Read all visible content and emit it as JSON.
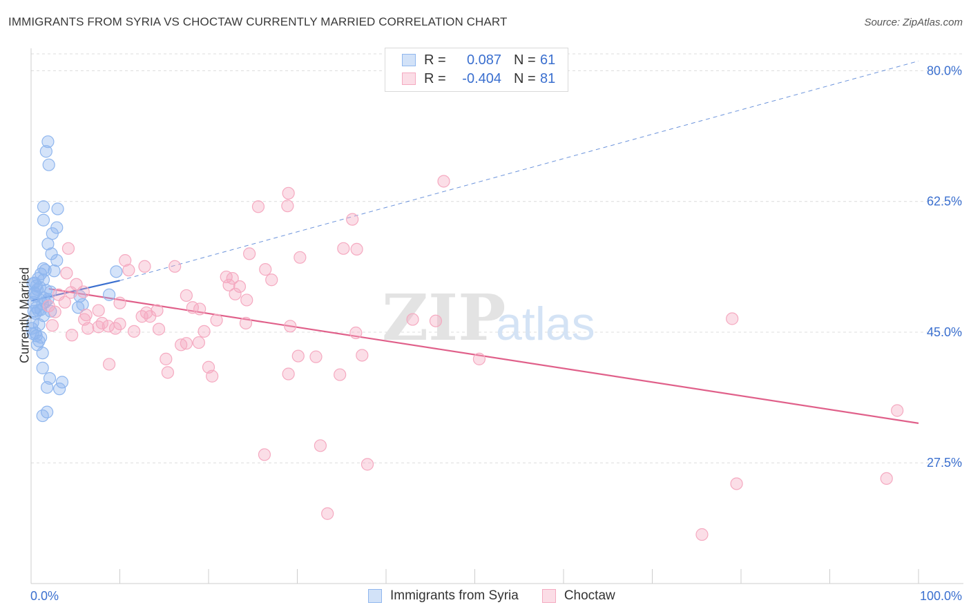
{
  "title": "IMMIGRANTS FROM SYRIA VS CHOCTAW CURRENTLY MARRIED CORRELATION CHART",
  "source": "Source: ZipAtlas.com",
  "watermark": {
    "zip": "ZIP",
    "atlas": "atlas"
  },
  "legend": {
    "rows": [
      {
        "r_label": "R =",
        "r_value": "0.087",
        "n_label": "N =",
        "n_value": "61",
        "color": "#8fb6ee"
      },
      {
        "r_label": "R =",
        "r_value": "-0.404",
        "n_label": "N =",
        "n_value": "81",
        "color": "#f5a9c0"
      }
    ]
  },
  "chart_data": {
    "type": "scatter",
    "title": "IMMIGRANTS FROM SYRIA VS CHOCTAW CURRENTLY MARRIED CORRELATION CHART",
    "xlabel": "",
    "ylabel": "Currently Married",
    "xlim": [
      0,
      100
    ],
    "ylim": [
      13,
      83
    ],
    "x_tick_labels": [
      "0.0%",
      "100.0%"
    ],
    "y_ticks": [
      27.5,
      45.0,
      62.5,
      80.0
    ],
    "y_tick_labels": [
      "27.5%",
      "45.0%",
      "62.5%",
      "80.0%"
    ],
    "grid": true,
    "series": [
      {
        "name": "Immigrants from Syria",
        "color": "#8fb6ee",
        "line_color": "#3a6fcf",
        "trend_solid": [
          [
            0,
            49.2
          ],
          [
            10,
            51.9
          ]
        ],
        "trend_dashed": [
          [
            10,
            51.9
          ],
          [
            100,
            81.3
          ]
        ],
        "points": [
          [
            1.9,
            70.5
          ],
          [
            1.7,
            69.2
          ],
          [
            2.0,
            67.4
          ],
          [
            1.4,
            61.8
          ],
          [
            3.0,
            61.5
          ],
          [
            1.4,
            60.0
          ],
          [
            2.9,
            59.0
          ],
          [
            2.4,
            58.2
          ],
          [
            1.9,
            56.8
          ],
          [
            2.3,
            55.5
          ],
          [
            2.9,
            54.6
          ],
          [
            1.4,
            53.5
          ],
          [
            1.6,
            53.3
          ],
          [
            2.6,
            53.2
          ],
          [
            1.1,
            52.8
          ],
          [
            1.4,
            52.0
          ],
          [
            0.8,
            52.2
          ],
          [
            0.4,
            51.6
          ],
          [
            0.6,
            51.2
          ],
          [
            1.0,
            51.0
          ],
          [
            0.7,
            50.7
          ],
          [
            1.7,
            50.6
          ],
          [
            2.2,
            50.4
          ],
          [
            0.4,
            50.3
          ],
          [
            0.5,
            49.8
          ],
          [
            1.4,
            49.6
          ],
          [
            1.9,
            49.4
          ],
          [
            1.3,
            48.8
          ],
          [
            0.3,
            49.0
          ],
          [
            0.6,
            48.3
          ],
          [
            1.1,
            48.0
          ],
          [
            5.5,
            49.8
          ],
          [
            8.8,
            50.0
          ],
          [
            5.8,
            48.7
          ],
          [
            5.3,
            48.3
          ],
          [
            1.4,
            47.2
          ],
          [
            2.2,
            47.8
          ],
          [
            0.5,
            47.5
          ],
          [
            0.8,
            47.9
          ],
          [
            0.2,
            46.3
          ],
          [
            0.1,
            45.5
          ],
          [
            0.2,
            44.8
          ],
          [
            0.6,
            44.5
          ],
          [
            1.1,
            44.3
          ],
          [
            0.9,
            43.8
          ],
          [
            0.7,
            43.3
          ],
          [
            1.3,
            42.2
          ],
          [
            1.3,
            40.2
          ],
          [
            2.1,
            38.8
          ],
          [
            3.5,
            38.3
          ],
          [
            1.8,
            37.6
          ],
          [
            3.2,
            37.4
          ],
          [
            1.8,
            34.3
          ],
          [
            1.3,
            33.8
          ],
          [
            0.4,
            50.2
          ],
          [
            0.9,
            46.0
          ],
          [
            9.6,
            53.1
          ],
          [
            0.2,
            51.5
          ],
          [
            0.3,
            47.8
          ],
          [
            0.5,
            44.9
          ],
          [
            1.6,
            49.0
          ]
        ]
      },
      {
        "name": "Choctaw",
        "color": "#f5a9c0",
        "line_color": "#e0608a",
        "trend_solid": [
          [
            2,
            50.8
          ],
          [
            100,
            32.8
          ]
        ],
        "trend_dashed": [],
        "points": [
          [
            46.5,
            65.2
          ],
          [
            29.0,
            63.6
          ],
          [
            25.6,
            61.8
          ],
          [
            28.9,
            61.9
          ],
          [
            36.2,
            60.1
          ],
          [
            35.2,
            56.2
          ],
          [
            36.7,
            56.1
          ],
          [
            24.6,
            55.5
          ],
          [
            30.3,
            55.0
          ],
          [
            10.6,
            54.6
          ],
          [
            4.2,
            56.2
          ],
          [
            11.0,
            53.3
          ],
          [
            12.8,
            53.8
          ],
          [
            16.2,
            53.8
          ],
          [
            26.4,
            53.4
          ],
          [
            4.0,
            52.9
          ],
          [
            22.0,
            52.4
          ],
          [
            22.7,
            52.2
          ],
          [
            27.1,
            52.0
          ],
          [
            5.1,
            51.4
          ],
          [
            22.3,
            51.3
          ],
          [
            23.5,
            51.1
          ],
          [
            4.5,
            50.3
          ],
          [
            5.9,
            50.4
          ],
          [
            17.5,
            49.9
          ],
          [
            3.1,
            50.0
          ],
          [
            23.0,
            50.1
          ],
          [
            24.3,
            49.3
          ],
          [
            10.0,
            48.9
          ],
          [
            18.2,
            48.3
          ],
          [
            19.0,
            48.1
          ],
          [
            14.2,
            47.9
          ],
          [
            2.7,
            47.7
          ],
          [
            7.6,
            47.9
          ],
          [
            13.0,
            47.6
          ],
          [
            12.5,
            47.1
          ],
          [
            13.4,
            47.1
          ],
          [
            6.0,
            46.7
          ],
          [
            20.9,
            46.6
          ],
          [
            43.0,
            46.7
          ],
          [
            45.6,
            46.5
          ],
          [
            79.0,
            46.8
          ],
          [
            24.2,
            46.2
          ],
          [
            10.0,
            46.1
          ],
          [
            8.0,
            46.2
          ],
          [
            8.7,
            45.8
          ],
          [
            29.2,
            45.8
          ],
          [
            7.6,
            45.7
          ],
          [
            9.5,
            45.5
          ],
          [
            6.4,
            45.5
          ],
          [
            14.4,
            45.4
          ],
          [
            19.5,
            45.1
          ],
          [
            11.6,
            45.1
          ],
          [
            36.6,
            44.9
          ],
          [
            4.6,
            44.6
          ],
          [
            18.9,
            43.6
          ],
          [
            16.9,
            43.3
          ],
          [
            17.5,
            43.5
          ],
          [
            2.4,
            45.9
          ],
          [
            30.1,
            41.8
          ],
          [
            32.1,
            41.7
          ],
          [
            37.3,
            41.9
          ],
          [
            15.2,
            41.4
          ],
          [
            50.5,
            41.4
          ],
          [
            20.0,
            40.3
          ],
          [
            8.8,
            40.7
          ],
          [
            15.4,
            39.6
          ],
          [
            20.4,
            39.1
          ],
          [
            29.0,
            39.4
          ],
          [
            34.8,
            39.3
          ],
          [
            97.6,
            34.5
          ],
          [
            32.6,
            29.8
          ],
          [
            26.3,
            28.6
          ],
          [
            37.9,
            27.3
          ],
          [
            79.5,
            24.7
          ],
          [
            96.4,
            25.4
          ],
          [
            33.4,
            20.7
          ],
          [
            75.6,
            17.9
          ],
          [
            2.0,
            48.5
          ],
          [
            3.8,
            49.0
          ],
          [
            6.2,
            47.3
          ]
        ]
      }
    ]
  },
  "bottom_legend": [
    {
      "label": "Immigrants from Syria",
      "color": "#8fb6ee"
    },
    {
      "label": "Choctaw",
      "color": "#f5a9c0"
    }
  ]
}
